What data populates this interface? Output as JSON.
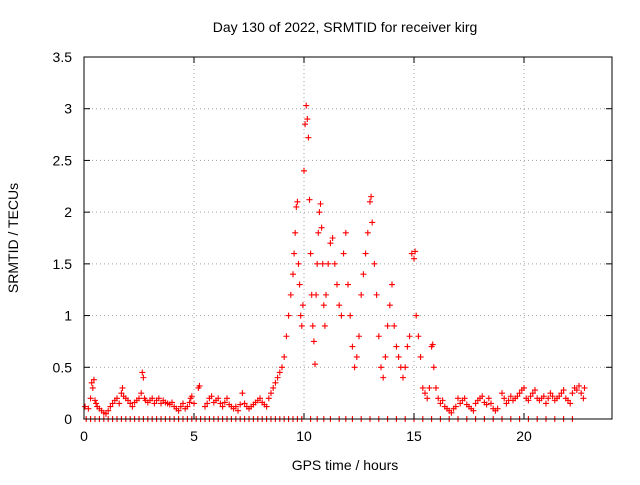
{
  "chart_data": {
    "type": "scatter",
    "title": "Day 130 of 2022, SRMTID for receiver kirg",
    "xlabel": "GPS time / hours",
    "ylabel": "SRMTID / TECUs",
    "xlim": [
      0,
      24
    ],
    "ylim": [
      0,
      3.5
    ],
    "xticks": [
      0,
      5,
      10,
      15,
      20
    ],
    "xtick_labels": [
      "0",
      "5",
      "10",
      "15",
      "20"
    ],
    "yticks": [
      0,
      0.5,
      1,
      1.5,
      2,
      2.5,
      3,
      3.5
    ],
    "ytick_labels": [
      "0",
      "0.5",
      "1",
      "1.5",
      "2",
      "2.5",
      "3",
      "3.5"
    ],
    "grid": true,
    "marker": "plus",
    "marker_color": "#ff0000",
    "series": [
      {
        "name": "kirg",
        "points": [
          [
            0.05,
            0.12
          ],
          [
            0.2,
            0.1
          ],
          [
            0.3,
            0.2
          ],
          [
            0.35,
            0.35
          ],
          [
            0.4,
            0.3
          ],
          [
            0.45,
            0.38
          ],
          [
            0.5,
            0.18
          ],
          [
            0.55,
            0.15
          ],
          [
            0.6,
            0.12
          ],
          [
            0.7,
            0.1
          ],
          [
            0.8,
            0.08
          ],
          [
            0.9,
            0.06
          ],
          [
            1.0,
            0.05
          ],
          [
            1.1,
            0.08
          ],
          [
            1.2,
            0.12
          ],
          [
            1.3,
            0.15
          ],
          [
            1.4,
            0.18
          ],
          [
            1.5,
            0.2
          ],
          [
            1.6,
            0.15
          ],
          [
            1.7,
            0.25
          ],
          [
            1.75,
            0.3
          ],
          [
            1.8,
            0.22
          ],
          [
            1.9,
            0.2
          ],
          [
            2.0,
            0.18
          ],
          [
            2.1,
            0.15
          ],
          [
            2.2,
            0.12
          ],
          [
            2.3,
            0.16
          ],
          [
            2.4,
            0.18
          ],
          [
            2.5,
            0.2
          ],
          [
            2.6,
            0.25
          ],
          [
            2.65,
            0.45
          ],
          [
            2.7,
            0.4
          ],
          [
            2.75,
            0.2
          ],
          [
            2.8,
            0.18
          ],
          [
            2.9,
            0.16
          ],
          [
            3.0,
            0.18
          ],
          [
            3.1,
            0.2
          ],
          [
            3.2,
            0.15
          ],
          [
            3.3,
            0.18
          ],
          [
            3.4,
            0.2
          ],
          [
            3.5,
            0.15
          ],
          [
            3.6,
            0.18
          ],
          [
            3.7,
            0.16
          ],
          [
            3.8,
            0.15
          ],
          [
            3.9,
            0.14
          ],
          [
            4.0,
            0.16
          ],
          [
            4.1,
            0.12
          ],
          [
            4.2,
            0.1
          ],
          [
            4.3,
            0.08
          ],
          [
            4.4,
            0.12
          ],
          [
            4.5,
            0.15
          ],
          [
            4.6,
            0.1
          ],
          [
            4.7,
            0.12
          ],
          [
            4.8,
            0.16
          ],
          [
            4.85,
            0.2
          ],
          [
            4.9,
            0.22
          ],
          [
            5.0,
            0.15
          ],
          [
            5.2,
            0.3
          ],
          [
            5.25,
            0.32
          ],
          [
            5.5,
            0.12
          ],
          [
            5.6,
            0.15
          ],
          [
            5.7,
            0.2
          ],
          [
            5.8,
            0.22
          ],
          [
            5.9,
            0.16
          ],
          [
            6.0,
            0.18
          ],
          [
            6.1,
            0.2
          ],
          [
            6.2,
            0.15
          ],
          [
            6.3,
            0.12
          ],
          [
            6.4,
            0.16
          ],
          [
            6.5,
            0.2
          ],
          [
            6.6,
            0.14
          ],
          [
            6.7,
            0.12
          ],
          [
            6.8,
            0.1
          ],
          [
            6.9,
            0.12
          ],
          [
            7.0,
            0.08
          ],
          [
            7.1,
            0.14
          ],
          [
            7.2,
            0.25
          ],
          [
            7.3,
            0.15
          ],
          [
            7.4,
            0.12
          ],
          [
            7.5,
            0.1
          ],
          [
            7.6,
            0.12
          ],
          [
            7.7,
            0.14
          ],
          [
            7.8,
            0.16
          ],
          [
            7.9,
            0.18
          ],
          [
            8.0,
            0.2
          ],
          [
            8.1,
            0.16
          ],
          [
            8.2,
            0.14
          ],
          [
            8.3,
            0.12
          ],
          [
            8.4,
            0.2
          ],
          [
            8.5,
            0.25
          ],
          [
            8.6,
            0.3
          ],
          [
            8.7,
            0.35
          ],
          [
            8.8,
            0.4
          ],
          [
            8.9,
            0.45
          ],
          [
            9.0,
            0.5
          ],
          [
            9.1,
            0.6
          ],
          [
            9.2,
            0.8
          ],
          [
            9.3,
            1.0
          ],
          [
            9.4,
            1.2
          ],
          [
            9.5,
            1.4
          ],
          [
            9.55,
            1.6
          ],
          [
            9.6,
            1.8
          ],
          [
            9.65,
            2.05
          ],
          [
            9.7,
            2.1
          ],
          [
            9.75,
            1.5
          ],
          [
            9.8,
            1.3
          ],
          [
            9.85,
            1.0
          ],
          [
            9.9,
            0.9
          ],
          [
            9.95,
            1.1
          ],
          [
            10.0,
            2.4
          ],
          [
            10.05,
            2.85
          ],
          [
            10.1,
            3.03
          ],
          [
            10.15,
            2.9
          ],
          [
            10.2,
            2.72
          ],
          [
            10.25,
            2.12
          ],
          [
            10.3,
            1.6
          ],
          [
            10.35,
            1.2
          ],
          [
            10.4,
            0.9
          ],
          [
            10.45,
            0.75
          ],
          [
            10.5,
            0.53
          ],
          [
            10.55,
            1.2
          ],
          [
            10.6,
            1.5
          ],
          [
            10.65,
            1.8
          ],
          [
            10.7,
            2.0
          ],
          [
            10.75,
            2.08
          ],
          [
            10.8,
            1.85
          ],
          [
            10.85,
            1.5
          ],
          [
            10.9,
            1.1
          ],
          [
            10.95,
            0.9
          ],
          [
            11.0,
            1.2
          ],
          [
            11.1,
            1.5
          ],
          [
            11.2,
            1.7
          ],
          [
            11.3,
            1.75
          ],
          [
            11.4,
            1.5
          ],
          [
            11.5,
            1.3
          ],
          [
            11.6,
            1.1
          ],
          [
            11.7,
            1.0
          ],
          [
            11.8,
            1.6
          ],
          [
            11.9,
            1.8
          ],
          [
            12.0,
            1.3
          ],
          [
            12.1,
            1.0
          ],
          [
            12.2,
            0.7
          ],
          [
            12.3,
            0.5
          ],
          [
            12.4,
            0.6
          ],
          [
            12.5,
            0.8
          ],
          [
            12.6,
            1.2
          ],
          [
            12.7,
            1.4
          ],
          [
            12.8,
            1.6
          ],
          [
            12.9,
            1.8
          ],
          [
            13.0,
            2.1
          ],
          [
            13.05,
            2.15
          ],
          [
            13.1,
            1.9
          ],
          [
            13.2,
            1.5
          ],
          [
            13.3,
            1.2
          ],
          [
            13.4,
            0.8
          ],
          [
            13.5,
            0.5
          ],
          [
            13.6,
            0.4
          ],
          [
            13.7,
            0.6
          ],
          [
            13.8,
            0.9
          ],
          [
            13.9,
            1.1
          ],
          [
            14.0,
            1.3
          ],
          [
            14.1,
            0.9
          ],
          [
            14.2,
            0.7
          ],
          [
            14.3,
            0.6
          ],
          [
            14.4,
            0.5
          ],
          [
            14.5,
            0.4
          ],
          [
            14.6,
            0.5
          ],
          [
            14.7,
            0.7
          ],
          [
            14.8,
            0.8
          ],
          [
            14.9,
            1.6
          ],
          [
            15.0,
            1.55
          ],
          [
            15.05,
            1.62
          ],
          [
            15.1,
            1.0
          ],
          [
            15.2,
            0.8
          ],
          [
            15.3,
            0.6
          ],
          [
            15.4,
            0.3
          ],
          [
            15.5,
            0.25
          ],
          [
            15.6,
            0.2
          ],
          [
            15.7,
            0.3
          ],
          [
            15.8,
            0.7
          ],
          [
            15.85,
            0.72
          ],
          [
            15.9,
            0.5
          ],
          [
            16.0,
            0.3
          ],
          [
            16.1,
            0.2
          ],
          [
            16.2,
            0.15
          ],
          [
            16.3,
            0.18
          ],
          [
            16.4,
            0.12
          ],
          [
            16.5,
            0.1
          ],
          [
            16.6,
            0.08
          ],
          [
            16.7,
            0.06
          ],
          [
            16.8,
            0.1
          ],
          [
            16.9,
            0.12
          ],
          [
            17.0,
            0.2
          ],
          [
            17.1,
            0.15
          ],
          [
            17.2,
            0.18
          ],
          [
            17.3,
            0.2
          ],
          [
            17.4,
            0.14
          ],
          [
            17.5,
            0.12
          ],
          [
            17.6,
            0.1
          ],
          [
            17.7,
            0.08
          ],
          [
            17.8,
            0.15
          ],
          [
            17.9,
            0.18
          ],
          [
            18.0,
            0.2
          ],
          [
            18.1,
            0.22
          ],
          [
            18.2,
            0.16
          ],
          [
            18.3,
            0.14
          ],
          [
            18.4,
            0.2
          ],
          [
            18.5,
            0.15
          ],
          [
            18.6,
            0.1
          ],
          [
            18.7,
            0.08
          ],
          [
            18.8,
            0.1
          ],
          [
            19.0,
            0.25
          ],
          [
            19.1,
            0.2
          ],
          [
            19.2,
            0.15
          ],
          [
            19.3,
            0.18
          ],
          [
            19.4,
            0.22
          ],
          [
            19.5,
            0.18
          ],
          [
            19.6,
            0.2
          ],
          [
            19.7,
            0.22
          ],
          [
            19.8,
            0.25
          ],
          [
            19.9,
            0.28
          ],
          [
            20.0,
            0.3
          ],
          [
            20.1,
            0.2
          ],
          [
            20.2,
            0.18
          ],
          [
            20.3,
            0.22
          ],
          [
            20.4,
            0.25
          ],
          [
            20.5,
            0.28
          ],
          [
            20.6,
            0.2
          ],
          [
            20.7,
            0.18
          ],
          [
            20.8,
            0.2
          ],
          [
            20.9,
            0.22
          ],
          [
            21.0,
            0.15
          ],
          [
            21.1,
            0.2
          ],
          [
            21.2,
            0.25
          ],
          [
            21.3,
            0.22
          ],
          [
            21.4,
            0.18
          ],
          [
            21.5,
            0.2
          ],
          [
            21.6,
            0.22
          ],
          [
            21.7,
            0.25
          ],
          [
            21.8,
            0.28
          ],
          [
            21.9,
            0.2
          ],
          [
            22.0,
            0.18
          ],
          [
            22.1,
            0.15
          ],
          [
            22.2,
            0.25
          ],
          [
            22.3,
            0.3
          ],
          [
            22.4,
            0.28
          ],
          [
            22.5,
            0.32
          ],
          [
            22.6,
            0.25
          ],
          [
            22.7,
            0.2
          ],
          [
            22.75,
            0.3
          ]
        ],
        "zero_x": [
          0.1,
          0.3,
          0.5,
          0.7,
          0.9,
          1.1,
          1.3,
          1.5,
          1.7,
          1.9,
          2.1,
          2.3,
          2.5,
          2.7,
          2.9,
          3.1,
          3.3,
          3.5,
          3.7,
          3.9,
          4.1,
          4.3,
          4.5,
          4.7,
          4.9,
          5.1,
          5.3,
          5.5,
          5.7,
          5.9,
          6.1,
          6.3,
          6.5,
          6.7,
          6.9,
          7.1,
          7.3,
          7.5,
          7.7,
          7.9,
          8.1,
          8.3,
          8.5,
          8.7,
          8.9,
          9.1,
          9.3,
          9.5,
          9.7,
          9.9,
          10.3,
          10.6,
          10.9,
          11.2,
          11.6,
          11.9,
          12.2,
          12.6,
          13.0,
          13.4,
          13.8,
          14.2,
          14.6,
          15.0,
          15.4,
          15.8,
          16.2,
          16.6,
          17.0,
          17.4,
          17.8,
          18.2,
          18.6,
          19.0,
          19.4,
          19.8,
          20.2,
          20.6,
          21.0,
          21.4,
          21.8,
          22.2
        ]
      }
    ]
  }
}
